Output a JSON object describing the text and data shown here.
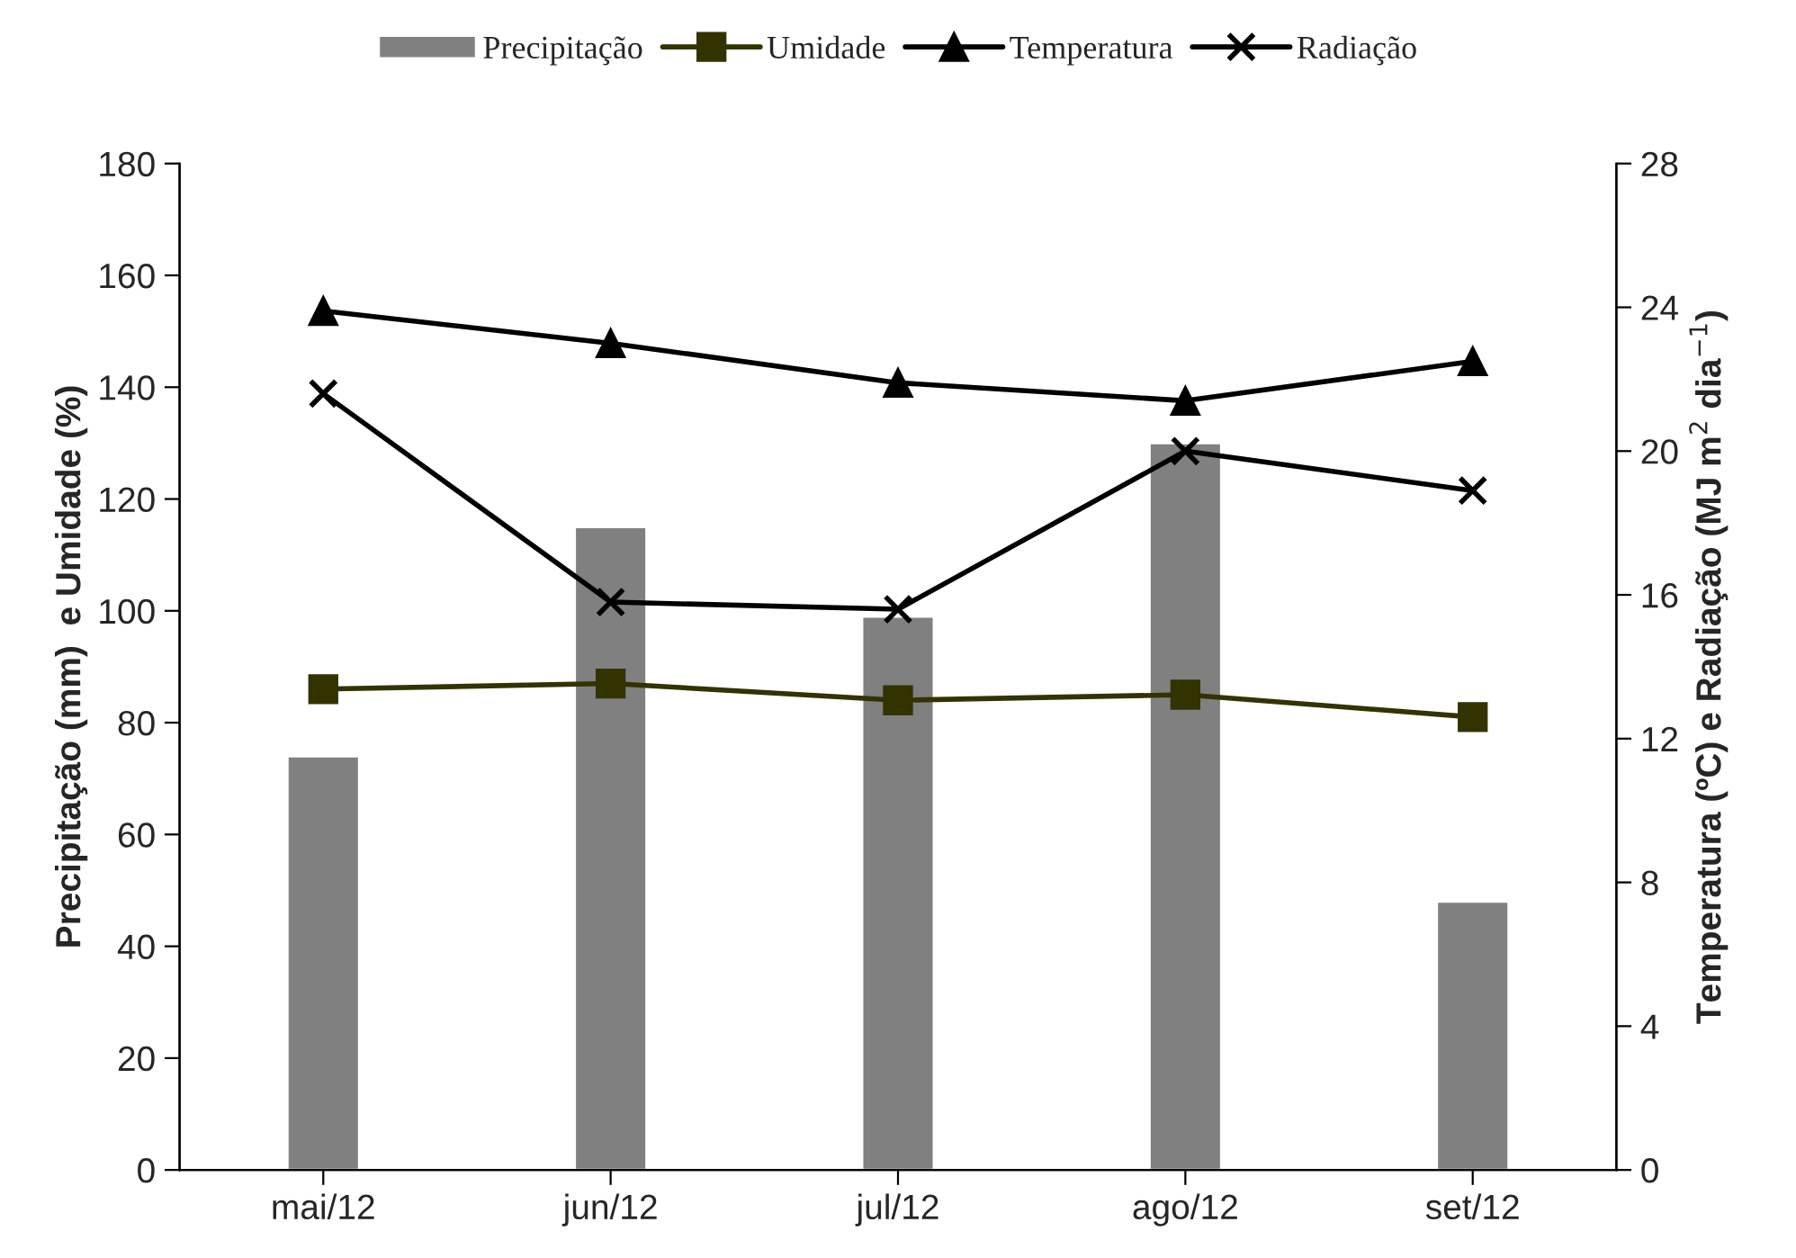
{
  "chart_data": {
    "type": "bar",
    "categories": [
      "mai/12",
      "jun/12",
      "jul/12",
      "ago/12",
      "set/12"
    ],
    "ylabel": "Precipitação (mm)  e Umidade (%)",
    "y2label": "Temperatura (ºC) e Radiação (MJ m$^{2}$ dia$^{−1}$)",
    "ylim": [
      0,
      180
    ],
    "yticks": [
      0,
      20,
      40,
      60,
      80,
      100,
      120,
      140,
      160,
      180
    ],
    "y2lim": [
      0,
      28
    ],
    "y2ticks": [
      0,
      4,
      8,
      12,
      16,
      20,
      24,
      28
    ],
    "grid": false,
    "legend": "top",
    "series": [
      {
        "name": "Precipitação",
        "color": "#808080",
        "values": [
          74,
          115,
          99,
          130,
          48
        ]
      },
      {
        "name": "Umidade",
        "type": "line",
        "color": "#333300",
        "marker": "square",
        "values": [
          86,
          87,
          84,
          85,
          81
        ]
      },
      {
        "name": "Temperatura",
        "type": "line",
        "axis": "y2",
        "color": "#000000",
        "marker": "triangle",
        "values": [
          23.9,
          23.0,
          21.9,
          21.4,
          22.5
        ]
      },
      {
        "name": "Radiação",
        "type": "line",
        "axis": "y2",
        "color": "#000000",
        "marker": "cross",
        "values": [
          21.6,
          15.8,
          15.6,
          20.0,
          18.9
        ]
      }
    ]
  }
}
